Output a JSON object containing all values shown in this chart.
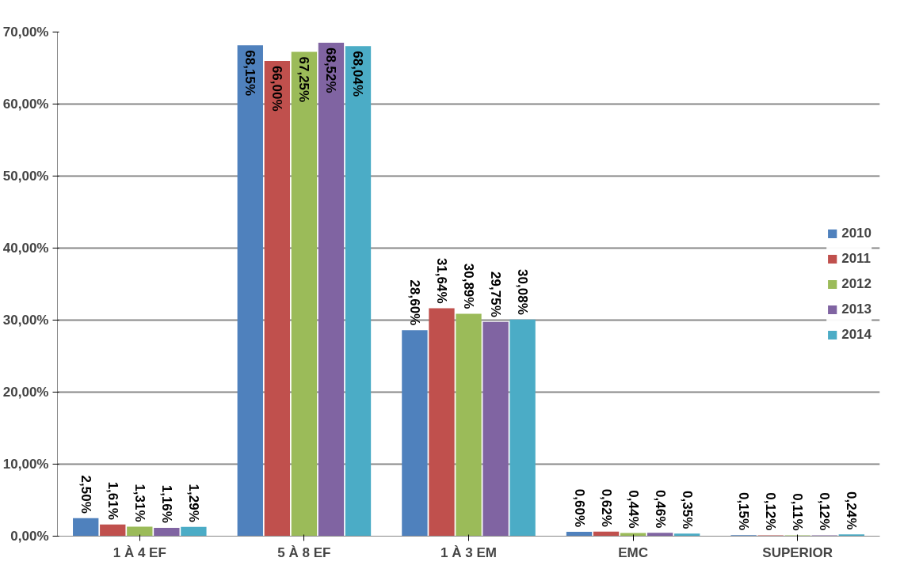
{
  "chart_data": {
    "type": "bar",
    "categories": [
      "1 À 4 EF",
      "5 À 8 EF",
      "1 À 3 EM",
      "EMC",
      "SUPERIOR"
    ],
    "series": [
      {
        "name": "2010",
        "color": "#4f81bd",
        "values": [
          2.5,
          68.15,
          28.6,
          0.6,
          0.15
        ],
        "value_labels": [
          "2,50%",
          "68,15%",
          "28,60%",
          "0,60%",
          "0,15%"
        ]
      },
      {
        "name": "2011",
        "color": "#c0504d",
        "values": [
          1.61,
          66.0,
          31.64,
          0.62,
          0.12
        ],
        "value_labels": [
          "1,61%",
          "66,00%",
          "31,64%",
          "0,62%",
          "0,12%"
        ]
      },
      {
        "name": "2012",
        "color": "#9bbb59",
        "values": [
          1.31,
          67.25,
          30.89,
          0.44,
          0.11
        ],
        "value_labels": [
          "1,31%",
          "67,25%",
          "30,89%",
          "0,44%",
          "0,11%"
        ]
      },
      {
        "name": "2013",
        "color": "#8064a2",
        "values": [
          1.16,
          68.52,
          29.75,
          0.46,
          0.12
        ],
        "value_labels": [
          "1,16%",
          "68,52%",
          "29,75%",
          "0,46%",
          "0,12%"
        ]
      },
      {
        "name": "2014",
        "color": "#4bacc6",
        "values": [
          1.29,
          68.04,
          30.08,
          0.35,
          0.24
        ],
        "value_labels": [
          "1,29%",
          "68,04%",
          "30,08%",
          "0,35%",
          "0,24%"
        ]
      }
    ],
    "ylim": [
      0,
      70
    ],
    "yticks": [
      {
        "value": 0,
        "label": "0,00%"
      },
      {
        "value": 10,
        "label": "10,00%"
      },
      {
        "value": 20,
        "label": "20,00%"
      },
      {
        "value": 30,
        "label": "30,00%"
      },
      {
        "value": 40,
        "label": "40,00%"
      },
      {
        "value": 50,
        "label": "50,00%"
      },
      {
        "value": 60,
        "label": "60,00%"
      },
      {
        "value": 70,
        "label": "70,00%"
      }
    ],
    "grid": "y",
    "legend": "right"
  }
}
